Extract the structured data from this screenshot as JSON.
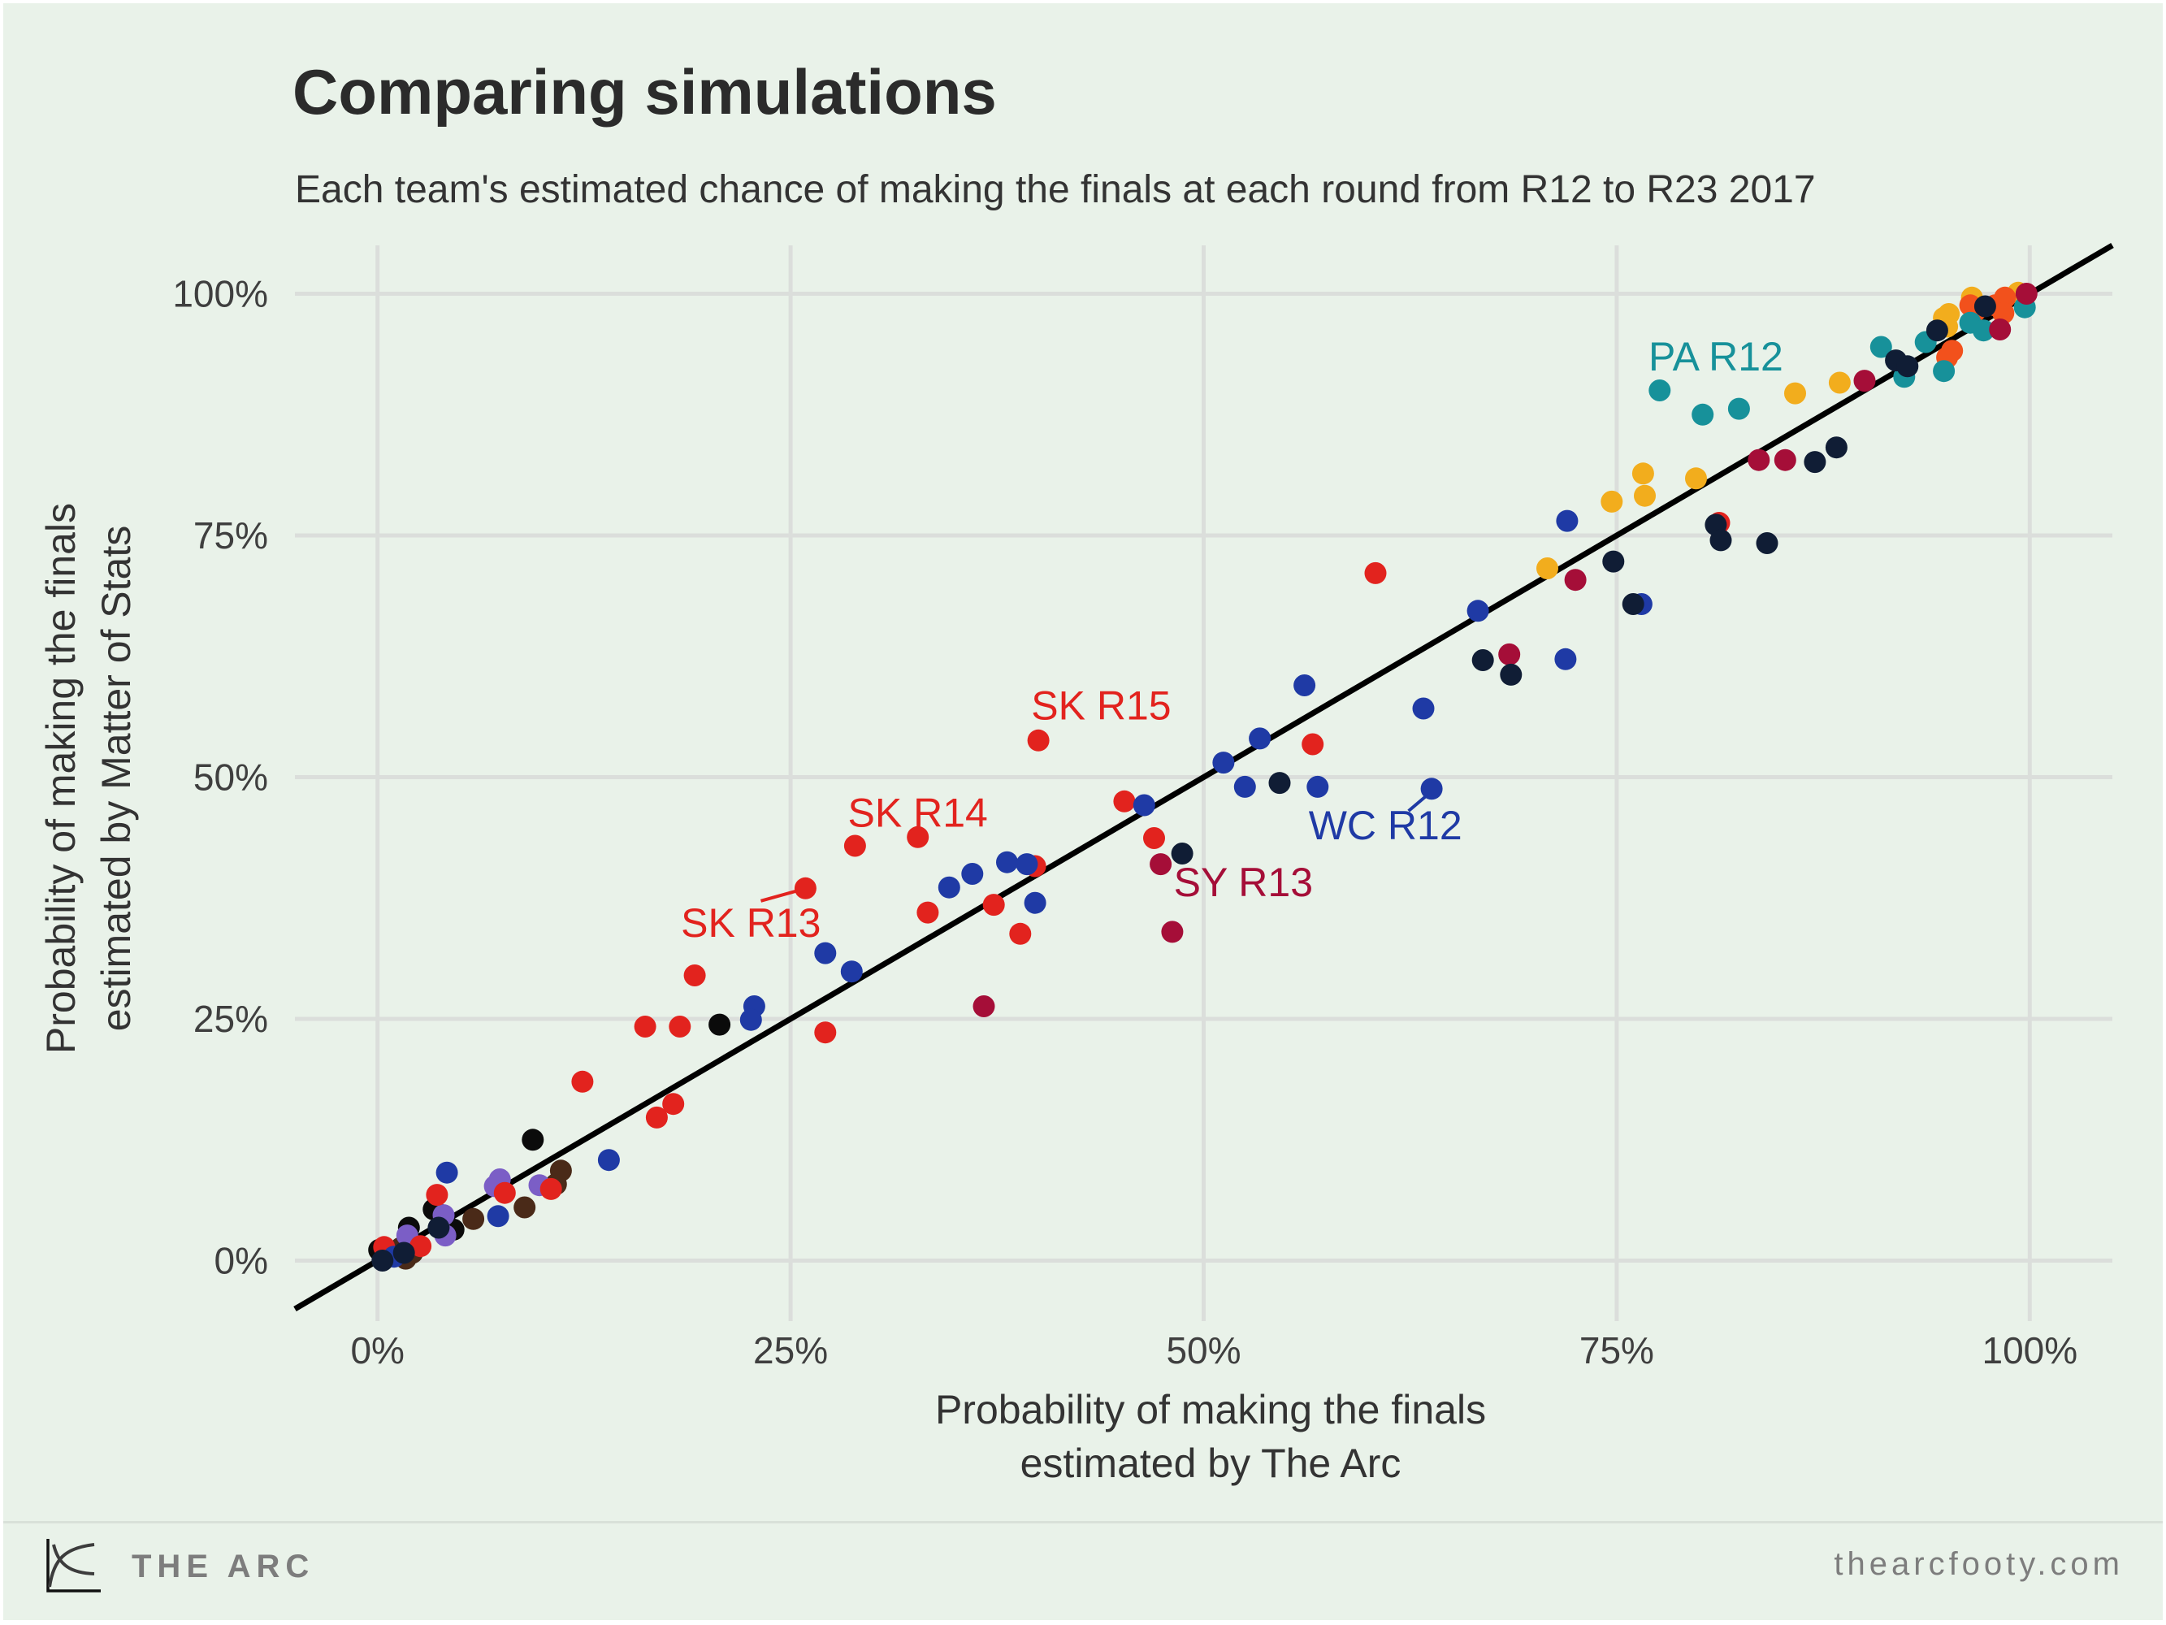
{
  "page": {
    "title": "Comparing simulations",
    "subtitle": "Each team's estimated chance of making the finals at each round from R12 to R23 2017"
  },
  "footer": {
    "brand": "THE ARC",
    "site": "thearcfooty.com",
    "logo_icon": "arc-curves-logo"
  },
  "colors": {
    "background": "#e9f2e9",
    "grid": "#dbdedb",
    "identity_line": "#000000",
    "title_text": "#2b2b2b",
    "tick_text": "#3f3f3f",
    "axis_title_text": "#333333",
    "footer_text": "#7d7d7d"
  },
  "chart_data": {
    "type": "scatter",
    "title": "Comparing simulations",
    "subtitle": "Each team's estimated chance of making the finals at each round from R12 to R23 2017",
    "xlabel_lines": [
      "Probability of making the finals",
      "estimated by The Arc"
    ],
    "ylabel_lines": [
      "Probability of making the finals",
      "estimated by Matter of Stats"
    ],
    "xlim": [
      -5,
      105
    ],
    "ylim": [
      -5,
      105
    ],
    "grid": true,
    "identity_line": true,
    "point_radius": 13.5,
    "ticks": {
      "values": [
        0,
        25,
        50,
        75,
        100
      ],
      "labels": [
        "0%",
        "25%",
        "50%",
        "75%",
        "100%"
      ]
    },
    "series": [
      {
        "name": "black",
        "color": "#0b0b0b",
        "points": [
          [
            0.1,
            1.1
          ],
          [
            1.9,
            3.4
          ],
          [
            3.4,
            5.3
          ],
          [
            4.6,
            3.2
          ],
          [
            9.4,
            12.5
          ],
          [
            20.7,
            24.4
          ]
        ]
      },
      {
        "name": "brown",
        "color": "#4a2a18",
        "points": [
          [
            1.7,
            0.2
          ],
          [
            1.4,
            1.3
          ],
          [
            2.1,
            0.8
          ],
          [
            5.8,
            4.3
          ],
          [
            8.9,
            5.5
          ],
          [
            10.8,
            7.9
          ],
          [
            11.1,
            9.3
          ]
        ]
      },
      {
        "name": "purple",
        "color": "#7b5ec6",
        "points": [
          [
            1.8,
            2.6
          ],
          [
            4.0,
            4.7
          ],
          [
            4.1,
            2.6
          ],
          [
            7.1,
            7.7
          ],
          [
            7.4,
            8.4
          ],
          [
            9.8,
            7.8
          ]
        ]
      },
      {
        "name": "red",
        "color": "#e2231e",
        "points": [
          [
            0.5,
            0.4
          ],
          [
            0.4,
            1.4
          ],
          [
            2.6,
            1.5
          ],
          [
            3.6,
            6.8
          ],
          [
            7.7,
            7.0
          ],
          [
            10.5,
            7.4
          ],
          [
            12.4,
            18.5
          ],
          [
            16.9,
            14.8
          ],
          [
            17.9,
            16.2
          ],
          [
            16.2,
            24.2
          ],
          [
            18.3,
            24.2
          ],
          [
            27.1,
            23.6
          ],
          [
            19.2,
            29.5
          ],
          [
            25.9,
            38.5
          ],
          [
            28.9,
            42.9
          ],
          [
            32.7,
            43.8
          ],
          [
            33.3,
            36.0
          ],
          [
            37.3,
            36.8
          ],
          [
            39.8,
            40.8
          ],
          [
            38.9,
            33.8
          ],
          [
            40.0,
            53.8
          ],
          [
            45.2,
            47.5
          ],
          [
            47.0,
            43.7
          ],
          [
            56.6,
            53.4
          ],
          [
            60.4,
            71.1
          ],
          [
            81.2,
            76.3
          ]
        ]
      },
      {
        "name": "blue",
        "color": "#1f3aa5",
        "points": [
          [
            1.0,
            0.4
          ],
          [
            4.2,
            9.1
          ],
          [
            7.3,
            4.6
          ],
          [
            14.0,
            10.4
          ],
          [
            22.8,
            26.3
          ],
          [
            22.6,
            24.9
          ],
          [
            27.1,
            31.8
          ],
          [
            28.7,
            29.9
          ],
          [
            34.6,
            38.6
          ],
          [
            36.0,
            40.0
          ],
          [
            38.1,
            41.2
          ],
          [
            39.3,
            41.0
          ],
          [
            39.8,
            37.0
          ],
          [
            46.4,
            47.1
          ],
          [
            51.2,
            51.5
          ],
          [
            52.5,
            49.0
          ],
          [
            56.9,
            49.0
          ],
          [
            63.8,
            48.8
          ],
          [
            53.4,
            54.0
          ],
          [
            56.1,
            59.5
          ],
          [
            63.3,
            57.1
          ],
          [
            71.9,
            62.2
          ],
          [
            66.6,
            67.2
          ],
          [
            72.0,
            76.5
          ],
          [
            76.5,
            67.9
          ]
        ]
      },
      {
        "name": "yellow",
        "color": "#f2ad1d",
        "points": [
          [
            70.8,
            71.6
          ],
          [
            74.7,
            78.5
          ],
          [
            76.6,
            81.4
          ],
          [
            76.7,
            79.1
          ],
          [
            79.8,
            80.9
          ],
          [
            85.8,
            89.7
          ],
          [
            88.5,
            90.8
          ],
          [
            94.8,
            97.5
          ],
          [
            95.0,
            96.6
          ],
          [
            95.1,
            97.9
          ],
          [
            96.5,
            99.6
          ],
          [
            99.3,
            100.1
          ]
        ]
      },
      {
        "name": "orange",
        "color": "#f2511c",
        "points": [
          [
            95.3,
            94.1
          ],
          [
            95.0,
            93.4
          ],
          [
            96.4,
            98.8
          ],
          [
            96.7,
            98.2
          ],
          [
            97.9,
            98.8
          ],
          [
            98.5,
            99.6
          ],
          [
            98.4,
            98.0
          ]
        ]
      },
      {
        "name": "teal",
        "color": "#17919a",
        "points": [
          [
            77.6,
            90.0
          ],
          [
            80.2,
            87.5
          ],
          [
            82.4,
            88.1
          ],
          [
            91.0,
            94.5
          ],
          [
            92.4,
            91.4
          ],
          [
            93.7,
            95.0
          ],
          [
            94.8,
            92.0
          ],
          [
            96.4,
            97.0
          ],
          [
            97.2,
            96.2
          ],
          [
            99.7,
            98.6
          ]
        ]
      },
      {
        "name": "crimson",
        "color": "#a50e38",
        "points": [
          [
            36.7,
            26.3
          ],
          [
            47.4,
            41.0
          ],
          [
            48.1,
            34.0
          ],
          [
            68.5,
            62.7
          ],
          [
            72.5,
            70.4
          ],
          [
            83.6,
            82.8
          ],
          [
            85.2,
            82.8
          ],
          [
            90.0,
            91.0
          ],
          [
            98.2,
            96.3
          ],
          [
            99.8,
            100.0
          ]
        ]
      },
      {
        "name": "dark-navy",
        "color": "#101d35",
        "points": [
          [
            1.6,
            0.8
          ],
          [
            0.3,
            0.0
          ],
          [
            3.7,
            3.4
          ],
          [
            48.7,
            42.1
          ],
          [
            54.6,
            49.4
          ],
          [
            66.9,
            62.1
          ],
          [
            68.6,
            60.6
          ],
          [
            74.8,
            72.3
          ],
          [
            76.0,
            67.9
          ],
          [
            81.0,
            76.1
          ],
          [
            81.3,
            74.5
          ],
          [
            84.1,
            74.2
          ],
          [
            87.0,
            82.6
          ],
          [
            88.3,
            84.1
          ],
          [
            91.9,
            93.1
          ],
          [
            92.6,
            92.5
          ],
          [
            94.4,
            96.2
          ],
          [
            97.3,
            98.7
          ]
        ]
      }
    ],
    "annotations": [
      {
        "label": "PA R12",
        "x": 81.0,
        "y": 93.5,
        "color": "#17919a"
      },
      {
        "label": "SK R15",
        "x": 43.8,
        "y": 57.4,
        "color": "#e2231e"
      },
      {
        "label": "SK R14",
        "x": 32.7,
        "y": 46.3,
        "color": "#e2231e"
      },
      {
        "label": "SK R13",
        "x": 22.6,
        "y": 34.9,
        "color": "#e2231e",
        "leader": [
          23.2,
          37.2,
          25.3,
          38.2
        ]
      },
      {
        "label": "SY R13",
        "x": 52.4,
        "y": 39.1,
        "color": "#a50e38"
      },
      {
        "label": "WC R12",
        "x": 61.0,
        "y": 45.0,
        "color": "#1f3aa5",
        "leader": [
          62.4,
          46.5,
          63.5,
          48.1
        ]
      }
    ]
  }
}
